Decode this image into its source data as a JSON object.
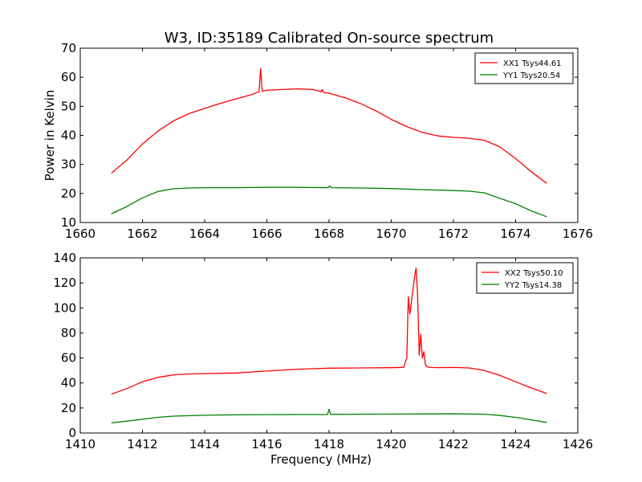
{
  "figure": {
    "title": "W3, ID:35189 Calibrated On-source spectrum"
  },
  "chart_data": [
    {
      "type": "line",
      "title": "W3, ID:35189 Calibrated On-source spectrum",
      "xlabel": "",
      "ylabel": "Power in Kelvin",
      "xlim": [
        1660,
        1676
      ],
      "ylim": [
        10,
        70
      ],
      "xticks": [
        "1660",
        "1662",
        "1664",
        "1666",
        "1668",
        "1670",
        "1672",
        "1674",
        "1676"
      ],
      "yticks": [
        "10",
        "20",
        "30",
        "40",
        "50",
        "60",
        "70"
      ],
      "grid": false,
      "legend_position": "top-right",
      "series": [
        {
          "name": "XX1 Tsys44.61",
          "color": "#ff0000",
          "x": [
            1661.0,
            1661.5,
            1662.0,
            1662.5,
            1663.0,
            1663.5,
            1664.0,
            1664.5,
            1665.0,
            1665.5,
            1665.75,
            1665.8,
            1665.85,
            1666.0,
            1666.5,
            1667.0,
            1667.5,
            1667.75,
            1667.78,
            1667.82,
            1668.0,
            1668.5,
            1669.0,
            1669.5,
            1670.0,
            1670.5,
            1671.0,
            1671.5,
            1672.0,
            1672.5,
            1673.0,
            1673.5,
            1674.0,
            1674.5,
            1675.0
          ],
          "y": [
            27.0,
            31.5,
            37.0,
            41.5,
            45.0,
            47.5,
            49.3,
            51.0,
            52.5,
            54.0,
            55.0,
            63.0,
            55.2,
            55.5,
            55.8,
            56.0,
            55.8,
            55.0,
            55.8,
            54.8,
            54.5,
            53.0,
            51.0,
            48.5,
            45.5,
            43.0,
            41.0,
            39.8,
            39.3,
            39.0,
            38.3,
            36.0,
            32.0,
            27.5,
            23.5
          ]
        },
        {
          "name": "YY1 Tsys20.54",
          "color": "#008000",
          "x": [
            1661.0,
            1661.5,
            1662.0,
            1662.5,
            1663.0,
            1663.5,
            1664.0,
            1665.0,
            1666.0,
            1667.0,
            1667.97,
            1668.02,
            1668.07,
            1669.0,
            1670.0,
            1671.0,
            1672.0,
            1672.5,
            1673.0,
            1673.5,
            1674.0,
            1674.5,
            1675.0
          ],
          "y": [
            13.0,
            15.5,
            18.5,
            20.7,
            21.6,
            21.9,
            22.0,
            22.0,
            22.1,
            22.1,
            22.0,
            22.6,
            22.0,
            21.9,
            21.7,
            21.3,
            21.0,
            20.8,
            20.2,
            18.3,
            16.5,
            14.0,
            12.0
          ]
        }
      ]
    },
    {
      "type": "line",
      "title": "",
      "xlabel": "Frequency (MHz)",
      "ylabel": "",
      "xlim": [
        1410,
        1426
      ],
      "ylim": [
        0,
        140
      ],
      "xticks": [
        "1410",
        "1412",
        "1414",
        "1416",
        "1418",
        "1420",
        "1422",
        "1424",
        "1426"
      ],
      "yticks": [
        "0",
        "20",
        "40",
        "60",
        "80",
        "100",
        "120",
        "140"
      ],
      "grid": false,
      "legend_position": "top-right",
      "series": [
        {
          "name": "XX2 Tsys50.10",
          "color": "#ff0000",
          "x": [
            1411.0,
            1411.5,
            1412.0,
            1412.5,
            1413.0,
            1413.5,
            1414.0,
            1415.0,
            1416.0,
            1417.0,
            1418.0,
            1419.0,
            1420.0,
            1420.4,
            1420.5,
            1420.55,
            1420.6,
            1420.65,
            1420.7,
            1420.75,
            1420.8,
            1420.85,
            1420.9,
            1420.95,
            1421.0,
            1421.05,
            1421.1,
            1421.15,
            1421.25,
            1421.5,
            1422.0,
            1422.5,
            1423.0,
            1423.5,
            1424.0,
            1424.5,
            1425.0
          ],
          "y": [
            31.0,
            35.5,
            41.0,
            44.5,
            46.5,
            47.2,
            47.5,
            48.0,
            49.5,
            51.0,
            51.8,
            52.0,
            52.2,
            52.5,
            60.0,
            109.0,
            95.0,
            105.0,
            115.0,
            125.0,
            132.0,
            110.0,
            62.0,
            79.0,
            60.0,
            65.0,
            55.0,
            53.0,
            52.4,
            52.3,
            52.4,
            52.0,
            50.0,
            46.0,
            41.0,
            36.0,
            31.5
          ]
        },
        {
          "name": "YY2 Tsys14.38",
          "color": "#008000",
          "x": [
            1411.0,
            1411.5,
            1412.0,
            1412.5,
            1413.0,
            1414.0,
            1415.0,
            1416.0,
            1417.0,
            1417.95,
            1418.0,
            1418.05,
            1419.0,
            1420.0,
            1421.0,
            1422.0,
            1423.0,
            1423.5,
            1424.0,
            1424.5,
            1425.0
          ],
          "y": [
            8.0,
            9.5,
            11.0,
            12.5,
            13.5,
            14.2,
            14.5,
            14.7,
            14.8,
            14.8,
            19.0,
            14.9,
            15.0,
            15.1,
            15.2,
            15.3,
            15.0,
            14.0,
            12.5,
            10.5,
            8.5
          ]
        }
      ]
    }
  ]
}
